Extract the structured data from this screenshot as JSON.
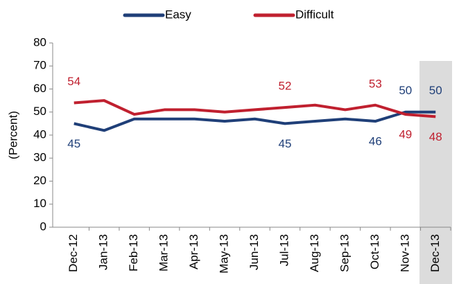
{
  "chart_data": {
    "type": "line",
    "y_label": "(Percent)",
    "categories": [
      "Dec-12",
      "Jan-13",
      "Feb-13",
      "Mar-13",
      "Apr-13",
      "May-13",
      "Jun-13",
      "Jul-13",
      "Aug-13",
      "Sep-13",
      "Oct-13",
      "Nov-13",
      "Dec-13"
    ],
    "series": [
      {
        "name": "Easy",
        "color": "#1f3f78",
        "values": [
          45,
          42,
          47,
          47,
          47,
          46,
          47,
          45,
          46,
          47,
          46,
          50,
          50
        ],
        "value_labels": [
          "45",
          null,
          null,
          null,
          null,
          null,
          null,
          "45",
          null,
          null,
          "46",
          "50",
          "50"
        ]
      },
      {
        "name": "Difficult",
        "color": "#c0202f",
        "values": [
          54,
          55,
          49,
          51,
          51,
          50,
          51,
          52,
          53,
          51,
          53,
          49,
          48
        ],
        "value_labels": [
          "54",
          null,
          null,
          null,
          null,
          null,
          null,
          "52",
          null,
          null,
          "53",
          "49",
          "48"
        ]
      }
    ],
    "ylim": [
      0,
      80
    ],
    "yticks": [
      0,
      10,
      20,
      30,
      40,
      50,
      60,
      70,
      80
    ],
    "legend": "top"
  }
}
